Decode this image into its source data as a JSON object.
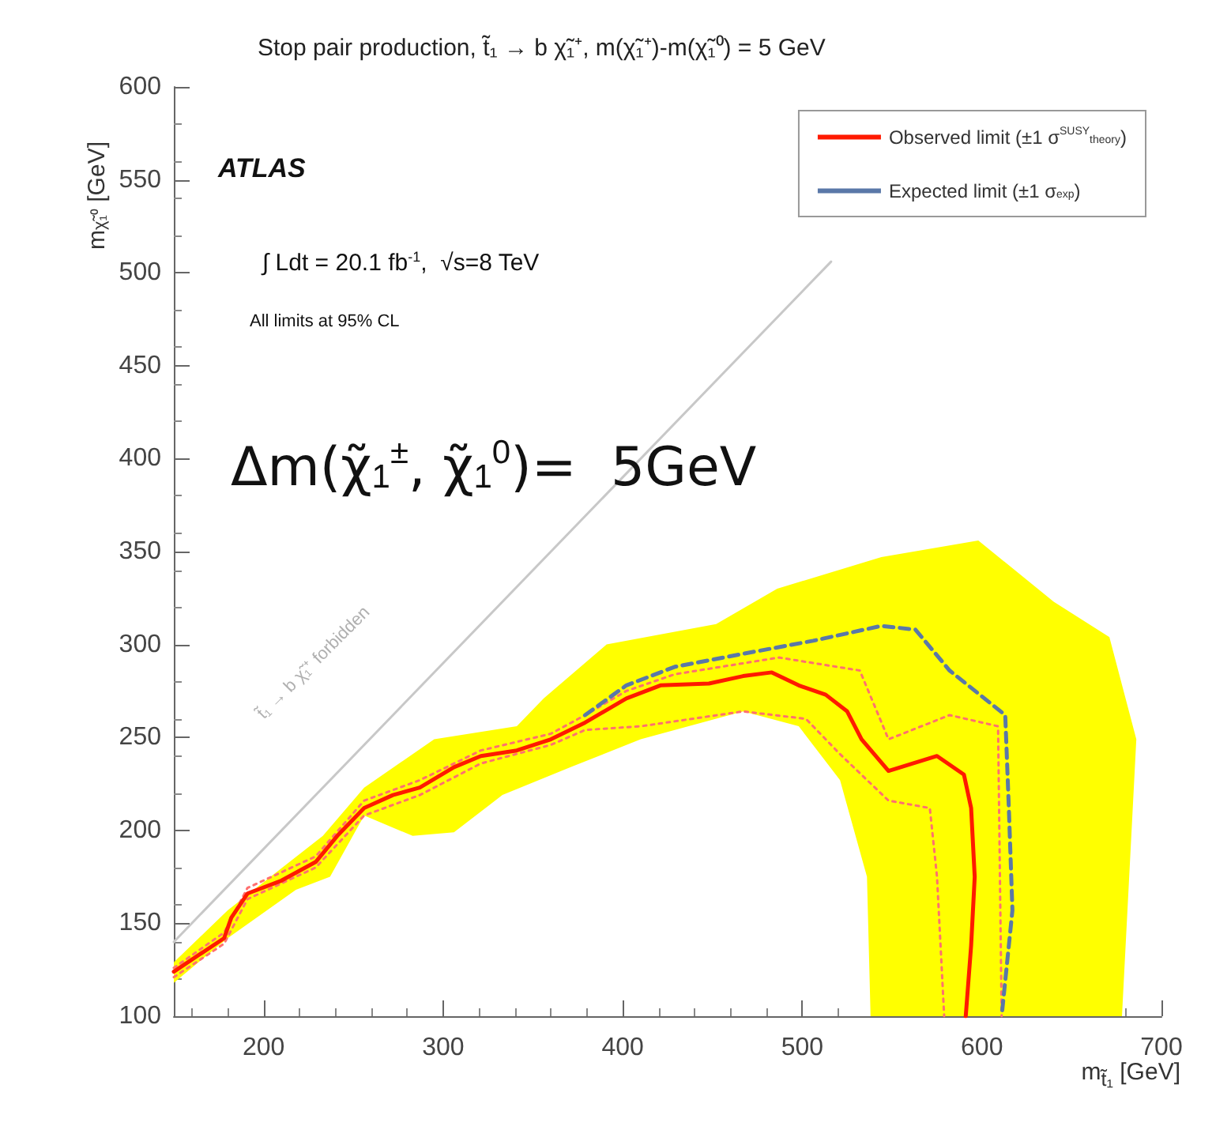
{
  "chart_data": {
    "type": "line",
    "title": "Stop pair production, t̃₁ → b χ̃₁⁺, m(χ̃₁⁺)-m(χ̃₁⁰) = 5 GeV",
    "xlabel": "m$_{t̃₁}$ [GeV]",
    "ylabel": "m$_{χ̃₁⁰}$ [GeV]",
    "xlim": [
      150,
      700
    ],
    "xticks": [
      200,
      300,
      400,
      500,
      600,
      700
    ],
    "ylim": [
      100,
      600
    ],
    "yticks": [
      100,
      150,
      200,
      250,
      300,
      350,
      400,
      450,
      500,
      550,
      600
    ],
    "grid": false,
    "legend": "top right",
    "marker": "none",
    "annotations": [
      "ATLAS",
      "∫ Ldt = 20.1 fb$^{-1}$,  √s=8 TeV",
      "All limits at 95% CL",
      "Δm(χ̃$_{1}$$^{±}$, χ̃$_{1}$$^{0}$)=  5GeV",
      "t̃₁ → b χ̃₁⁺ forbidden"
    ],
    "series": [
      {
        "type": "area",
        "color": "#ffff00",
        "x": [
          150,
          180,
          233,
          256,
          295,
          341,
          356,
          391,
          452,
          486,
          544,
          598,
          640,
          671,
          686,
          678,
          538,
          536,
          521,
          498,
          467,
          410,
          371,
          333,
          306,
          283,
          256,
          237,
          218,
          180,
          150
        ],
        "values": [
          129,
          157,
          197,
          223,
          249,
          256,
          271,
          300,
          311,
          330,
          347,
          356,
          323,
          304,
          249,
          100,
          100,
          175,
          227,
          256,
          264,
          249,
          234,
          219,
          199,
          197,
          208,
          175,
          168,
          142,
          118
        ]
      },
      {
        "color": "#c8c8c8",
        "line_style": "solid",
        "x": [
          150,
          516
        ],
        "values": [
          140,
          506
        ]
      },
      {
        "color": "#ff7070",
        "line_style": "dotted",
        "x": [
          150,
          178,
          191,
          229,
          256,
          287,
          321,
          360,
          379,
          402,
          429,
          487,
          532,
          548,
          582,
          609,
          611
        ],
        "values": [
          126,
          145,
          169,
          186,
          216,
          227,
          243,
          252,
          262,
          275,
          284,
          293,
          286,
          249,
          262,
          256,
          100
        ]
      },
      {
        "color": "#ff7070",
        "line_style": "dotted",
        "x": [
          150,
          178,
          191,
          229,
          256,
          287,
          321,
          360,
          379,
          410,
          467,
          502,
          521,
          548,
          571,
          575,
          579
        ],
        "values": [
          121,
          139,
          163,
          180,
          208,
          219,
          236,
          246,
          254,
          256,
          264,
          260,
          241,
          216,
          212,
          175,
          100
        ]
      },
      {
        "name": "Expected limit (±1 σ$_{exp}$)",
        "color": "#5a78a8",
        "line_style": "dashed",
        "x": [
          379,
          402,
          429,
          467,
          506,
          544,
          563,
          582,
          613,
          615,
          617,
          611
        ],
        "values": [
          262,
          278,
          288,
          295,
          302,
          310,
          308,
          286,
          262,
          212,
          157,
          100
        ]
      },
      {
        "name": "Observed limit (±1 σ$^{SUSY}$$_{theory}$)",
        "color": "#ff1a00",
        "line_style": "solid",
        "x": [
          150,
          178,
          182,
          191,
          210,
          229,
          241,
          256,
          272,
          287,
          306,
          321,
          341,
          360,
          379,
          402,
          421,
          448,
          467,
          483,
          498,
          513,
          525,
          533,
          548,
          575,
          590,
          594,
          596,
          594,
          591
        ],
        "values": [
          124,
          142,
          153,
          166,
          173,
          183,
          197,
          212,
          219,
          223,
          234,
          240,
          243,
          249,
          258,
          271,
          278,
          279,
          283,
          285,
          278,
          273,
          264,
          249,
          232,
          240,
          230,
          212,
          175,
          138,
          100
        ]
      }
    ]
  }
}
